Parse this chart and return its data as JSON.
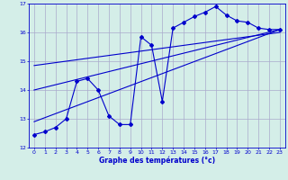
{
  "title": "",
  "xlabel": "Graphe des températures (°c)",
  "bg_color": "#d4eee8",
  "grid_color": "#aaaacc",
  "line_color": "#0000cc",
  "xlim": [
    -0.5,
    23.5
  ],
  "ylim": [
    12,
    17
  ],
  "yticks": [
    12,
    13,
    14,
    15,
    16,
    17
  ],
  "xticks": [
    0,
    1,
    2,
    3,
    4,
    5,
    6,
    7,
    8,
    9,
    10,
    11,
    12,
    13,
    14,
    15,
    16,
    17,
    18,
    19,
    20,
    21,
    22,
    23
  ],
  "main_x": [
    0,
    1,
    2,
    3,
    4,
    5,
    6,
    7,
    8,
    9,
    10,
    11,
    12,
    13,
    14,
    15,
    16,
    17,
    18,
    19,
    20,
    21,
    22,
    23
  ],
  "main_y": [
    12.45,
    12.55,
    12.7,
    13.0,
    14.3,
    14.4,
    14.0,
    13.1,
    12.8,
    12.8,
    15.85,
    15.55,
    13.6,
    16.15,
    16.35,
    16.55,
    16.7,
    16.9,
    16.6,
    16.4,
    16.35,
    16.15,
    16.1,
    16.1
  ],
  "line1_x": [
    0,
    23
  ],
  "line1_y": [
    12.9,
    16.1
  ],
  "line2_x": [
    0,
    23
  ],
  "line2_y": [
    14.0,
    16.1
  ],
  "line3_x": [
    0,
    23
  ],
  "line3_y": [
    14.85,
    16.0
  ]
}
